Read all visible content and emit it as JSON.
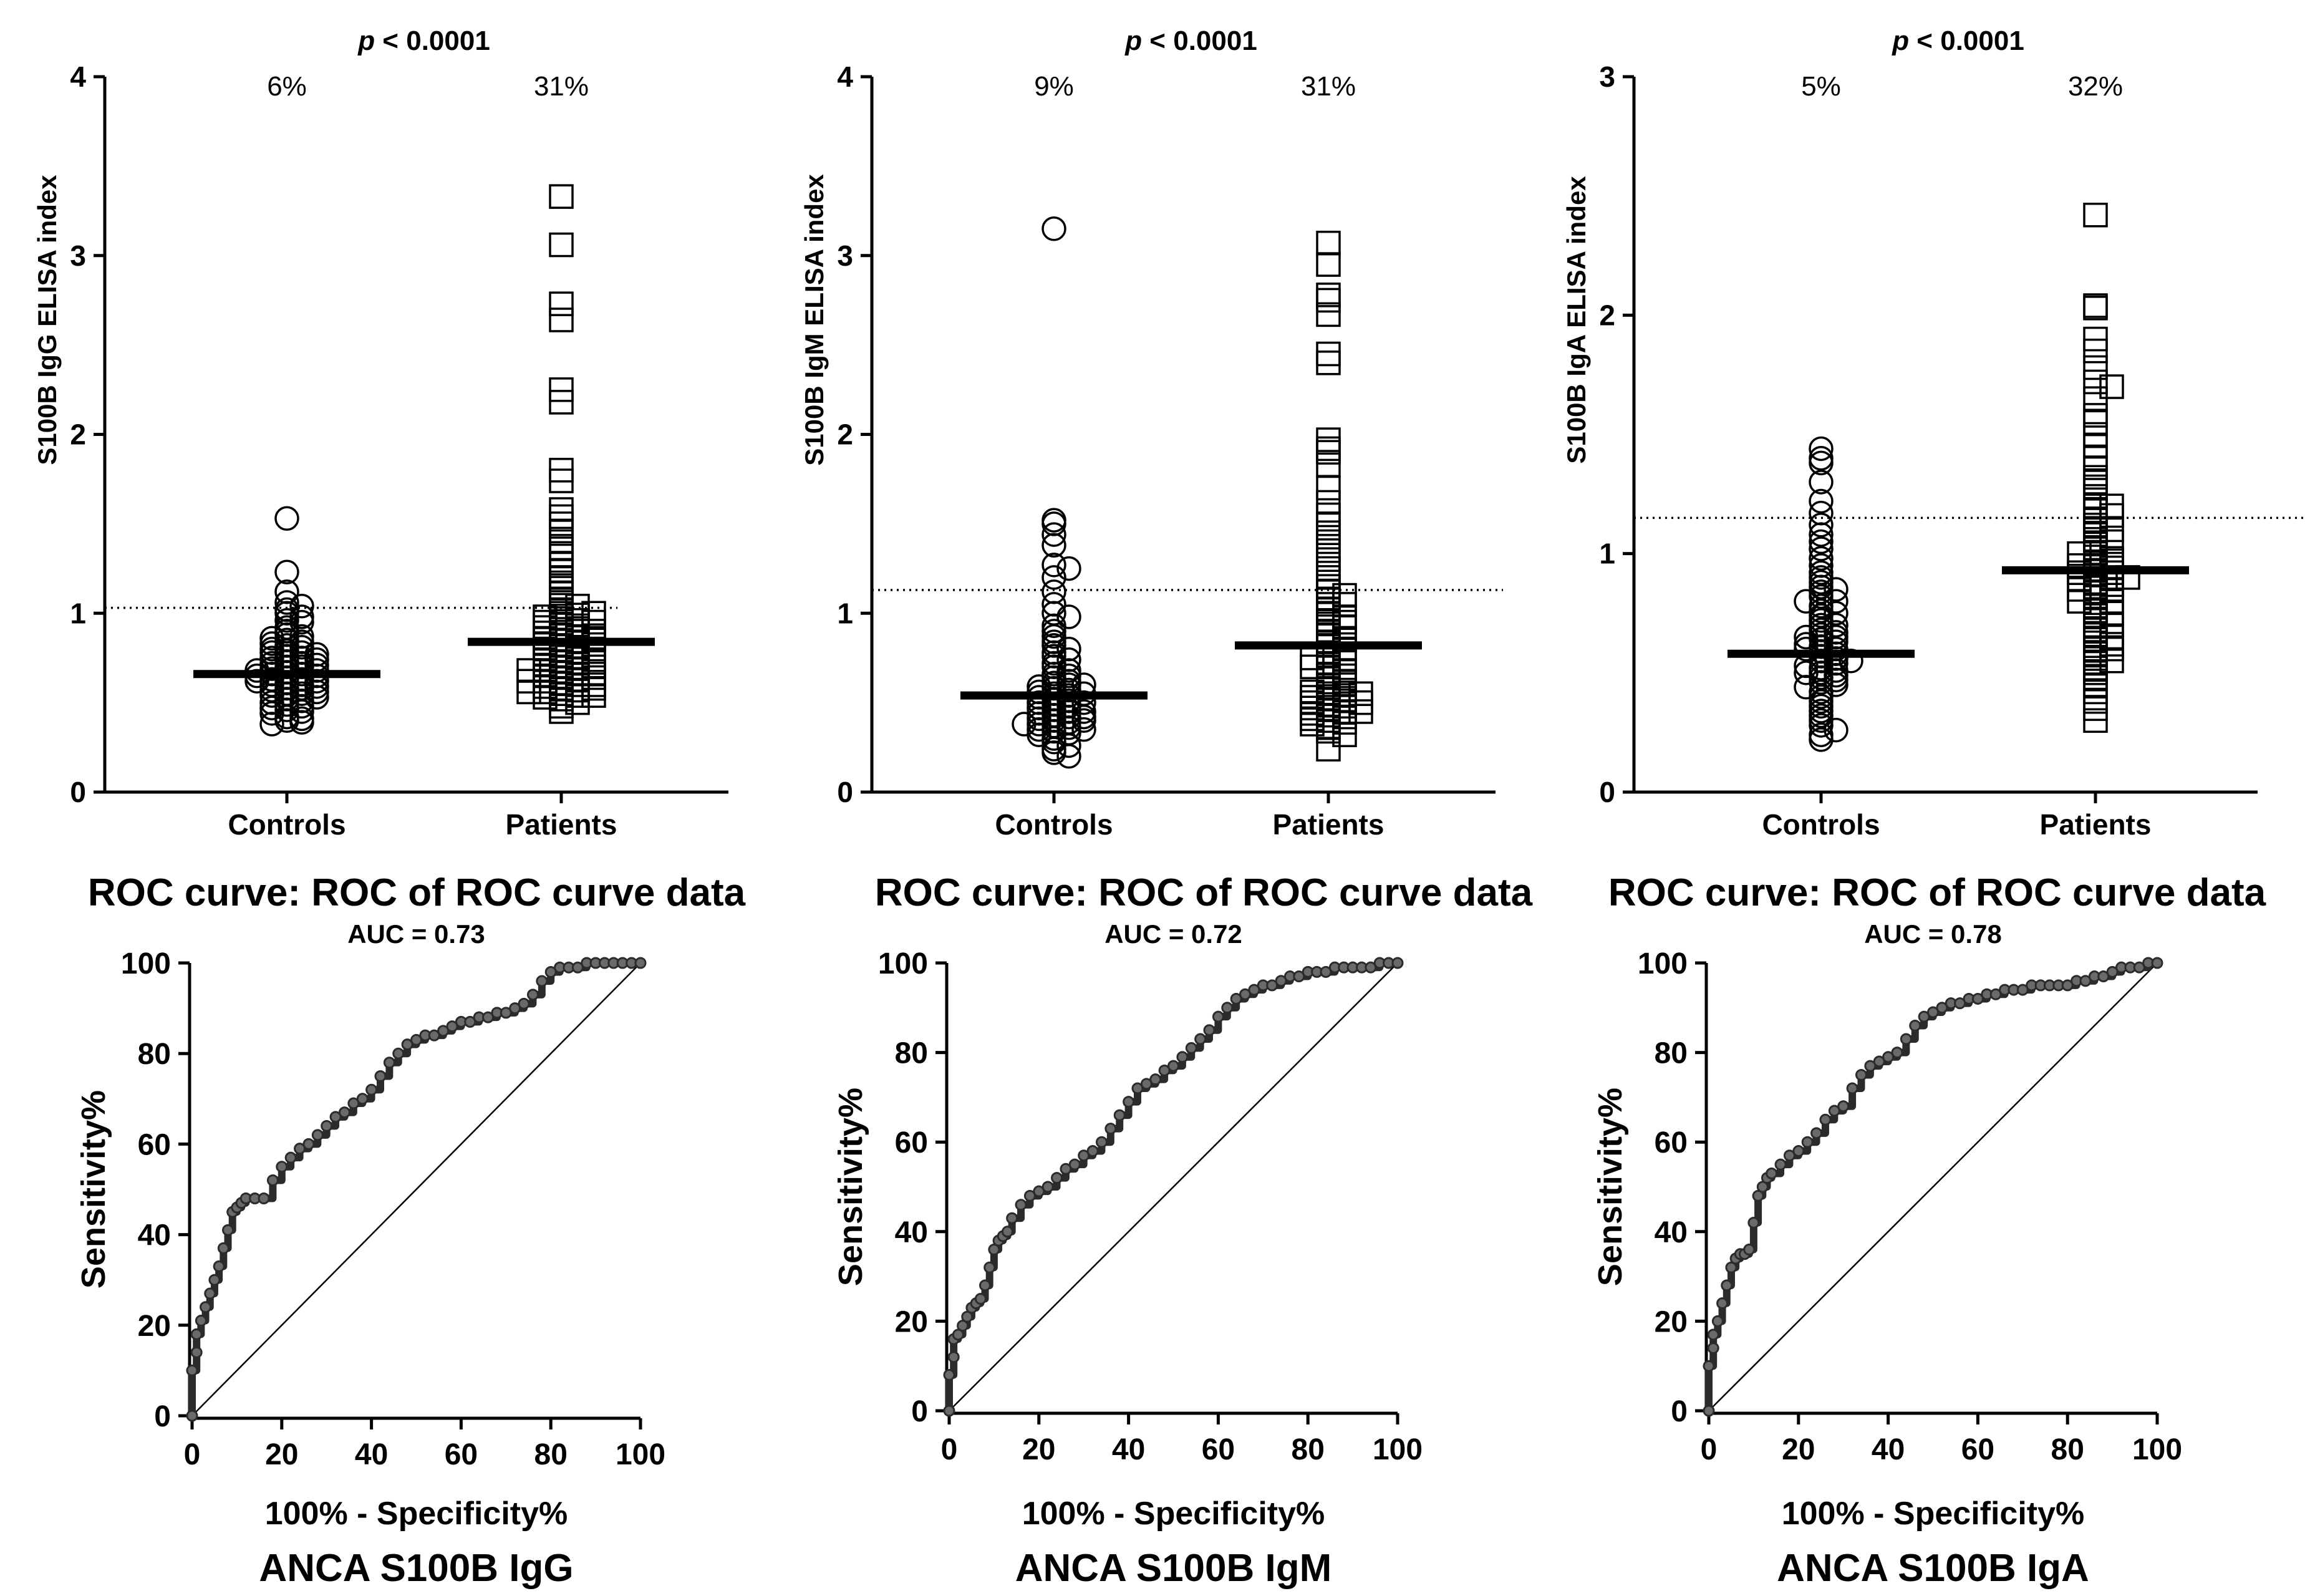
{
  "chart_data": [
    {
      "type": "scatter",
      "kind": "dot-plot",
      "ylabel": "S100B IgG ELISA index",
      "ylim": [
        0,
        4
      ],
      "yticks": [
        "0",
        "1",
        "2",
        "3",
        "4"
      ],
      "categories": [
        "Controls",
        "Patients"
      ],
      "percentages": [
        "6%",
        "31%"
      ],
      "p_value": {
        "italic": "p",
        "rest": " < 0.0001"
      },
      "cutoff": 1.03,
      "medians": [
        0.66,
        0.84
      ],
      "controls": [
        1.53,
        1.23,
        1.12,
        1.06,
        1.04,
        1.02,
        1.0,
        0.98,
        0.96,
        0.95,
        0.92,
        0.9,
        0.88,
        0.87,
        0.86,
        0.85,
        0.84,
        0.83,
        0.82,
        0.81,
        0.8,
        0.79,
        0.78,
        0.78,
        0.77,
        0.76,
        0.75,
        0.75,
        0.74,
        0.73,
        0.72,
        0.72,
        0.71,
        0.7,
        0.7,
        0.69,
        0.68,
        0.68,
        0.67,
        0.66,
        0.66,
        0.65,
        0.65,
        0.64,
        0.63,
        0.63,
        0.62,
        0.62,
        0.61,
        0.6,
        0.6,
        0.59,
        0.58,
        0.58,
        0.57,
        0.56,
        0.55,
        0.55,
        0.54,
        0.53,
        0.52,
        0.51,
        0.5,
        0.49,
        0.48,
        0.47,
        0.46,
        0.45,
        0.44,
        0.42,
        0.41,
        0.4,
        0.39,
        0.38
      ],
      "patients": [
        3.33,
        3.06,
        2.73,
        2.64,
        2.25,
        2.18,
        1.8,
        1.74,
        1.58,
        1.54,
        1.5,
        1.46,
        1.4,
        1.36,
        1.32,
        1.28,
        1.24,
        1.2,
        1.17,
        1.14,
        1.11,
        1.08,
        1.06,
        1.04,
        1.02,
        1.0,
        0.99,
        0.98,
        0.97,
        0.96,
        0.95,
        0.94,
        0.93,
        0.92,
        0.91,
        0.9,
        0.89,
        0.88,
        0.87,
        0.86,
        0.86,
        0.85,
        0.84,
        0.83,
        0.82,
        0.81,
        0.8,
        0.79,
        0.78,
        0.77,
        0.76,
        0.75,
        0.74,
        0.73,
        0.72,
        0.71,
        0.7,
        0.69,
        0.68,
        0.67,
        0.66,
        0.65,
        0.64,
        0.63,
        0.62,
        0.61,
        0.6,
        0.59,
        0.58,
        0.57,
        0.56,
        0.55,
        0.54,
        0.53,
        0.52,
        0.5,
        0.48,
        0.45,
        0.7,
        0.68,
        0.66,
        0.64,
        0.62,
        0.6,
        0.58,
        0.56,
        0.54,
        0.74,
        0.8,
        0.85,
        0.9,
        0.95,
        1.0
      ]
    },
    {
      "type": "scatter",
      "kind": "dot-plot",
      "ylabel": "S100B IgM ELISA index",
      "ylim": [
        0,
        4
      ],
      "yticks": [
        "0",
        "1",
        "2",
        "3",
        "4"
      ],
      "categories": [
        "Controls",
        "Patients"
      ],
      "percentages": [
        "9%",
        "31%"
      ],
      "p_value": {
        "italic": "p",
        "rest": " < 0.0001"
      },
      "cutoff": 1.13,
      "medians": [
        0.54,
        0.82
      ],
      "controls": [
        3.15,
        1.52,
        1.5,
        1.44,
        1.38,
        1.27,
        1.25,
        1.2,
        1.12,
        1.05,
        1.0,
        0.98,
        0.93,
        0.9,
        0.87,
        0.84,
        0.82,
        0.8,
        0.78,
        0.76,
        0.74,
        0.72,
        0.7,
        0.68,
        0.66,
        0.65,
        0.64,
        0.62,
        0.61,
        0.6,
        0.59,
        0.58,
        0.57,
        0.56,
        0.55,
        0.54,
        0.53,
        0.52,
        0.51,
        0.5,
        0.49,
        0.48,
        0.47,
        0.46,
        0.45,
        0.44,
        0.43,
        0.42,
        0.41,
        0.4,
        0.39,
        0.38,
        0.37,
        0.36,
        0.35,
        0.34,
        0.33,
        0.32,
        0.3,
        0.28,
        0.26,
        0.24,
        0.22,
        0.2,
        0.45,
        0.4,
        0.35,
        0.38,
        0.42,
        0.5,
        0.55,
        0.6
      ],
      "patients": [
        3.07,
        2.95,
        2.78,
        2.75,
        2.67,
        2.45,
        2.4,
        1.97,
        1.92,
        1.9,
        1.83,
        1.7,
        1.62,
        1.55,
        1.5,
        1.45,
        1.4,
        1.35,
        1.3,
        1.25,
        1.2,
        1.15,
        1.12,
        1.1,
        1.08,
        1.05,
        1.02,
        1.0,
        0.98,
        0.96,
        0.94,
        0.92,
        0.9,
        0.88,
        0.86,
        0.84,
        0.82,
        0.8,
        0.78,
        0.76,
        0.74,
        0.72,
        0.7,
        0.68,
        0.66,
        0.64,
        0.62,
        0.6,
        0.58,
        0.57,
        0.56,
        0.55,
        0.54,
        0.53,
        0.52,
        0.51,
        0.5,
        0.49,
        0.48,
        0.47,
        0.46,
        0.45,
        0.44,
        0.43,
        0.42,
        0.41,
        0.4,
        0.39,
        0.38,
        0.36,
        0.34,
        0.32,
        0.24,
        0.6,
        0.55,
        0.5,
        0.45,
        0.65,
        0.7,
        0.75,
        0.85,
        0.95,
        1.05
      ]
    },
    {
      "type": "scatter",
      "kind": "dot-plot",
      "ylabel": "S100B IgA ELISA index",
      "ylim": [
        0,
        3
      ],
      "yticks": [
        "0",
        "1",
        "2",
        "3"
      ],
      "categories": [
        "Controls",
        "Patients"
      ],
      "percentages": [
        "5%",
        "32%"
      ],
      "p_value": {
        "italic": "p",
        "rest": " < 0.0001"
      },
      "cutoff": 1.15,
      "medians": [
        0.58,
        0.93
      ],
      "controls": [
        1.44,
        1.4,
        1.38,
        1.3,
        1.22,
        1.17,
        1.12,
        1.08,
        1.05,
        1.02,
        0.98,
        0.95,
        0.92,
        0.9,
        0.88,
        0.86,
        0.84,
        0.82,
        0.8,
        0.78,
        0.76,
        0.74,
        0.72,
        0.7,
        0.68,
        0.67,
        0.66,
        0.65,
        0.64,
        0.63,
        0.62,
        0.61,
        0.6,
        0.59,
        0.58,
        0.57,
        0.56,
        0.55,
        0.54,
        0.53,
        0.52,
        0.51,
        0.5,
        0.49,
        0.48,
        0.47,
        0.46,
        0.45,
        0.44,
        0.42,
        0.4,
        0.38,
        0.36,
        0.34,
        0.32,
        0.3,
        0.28,
        0.26,
        0.24,
        0.22,
        0.5,
        0.55,
        0.6,
        0.65,
        0.7,
        0.75,
        0.8,
        0.85
      ],
      "patients": [
        2.42,
        2.04,
        2.03,
        1.9,
        1.85,
        1.78,
        1.72,
        1.7,
        1.65,
        1.58,
        1.55,
        1.5,
        1.45,
        1.4,
        1.36,
        1.32,
        1.28,
        1.24,
        1.2,
        1.18,
        1.16,
        1.14,
        1.12,
        1.1,
        1.08,
        1.06,
        1.04,
        1.02,
        1.0,
        0.98,
        0.96,
        0.95,
        0.94,
        0.93,
        0.92,
        0.91,
        0.9,
        0.89,
        0.88,
        0.87,
        0.86,
        0.85,
        0.84,
        0.82,
        0.8,
        0.78,
        0.76,
        0.74,
        0.72,
        0.7,
        0.68,
        0.66,
        0.64,
        0.62,
        0.6,
        0.58,
        0.56,
        0.54,
        0.52,
        0.5,
        0.48,
        0.45,
        0.42,
        0.38,
        0.35,
        0.3,
        0.9,
        0.95,
        1.0,
        1.05,
        0.85,
        0.8,
        0.75,
        0.7,
        0.65,
        0.6,
        0.55,
        1.1,
        1.2,
        1.3,
        0.92,
        0.97
      ]
    },
    {
      "type": "line",
      "kind": "roc",
      "title": "ROC curve: ROC of ROC curve data",
      "subtitle": "AUC = 0.73",
      "xlabel": "100% - Specificity%",
      "ylabel": "Sensitivity%",
      "caption": "ANCA S100B IgG",
      "xlim": [
        0,
        100
      ],
      "ylim": [
        0,
        100
      ],
      "xticks": [
        "0",
        "20",
        "40",
        "60",
        "80",
        "100"
      ],
      "yticks": [
        "0",
        "20",
        "40",
        "60",
        "80",
        "100"
      ],
      "x": [
        0,
        0,
        1,
        1,
        2,
        3,
        4,
        5,
        6,
        7,
        8,
        9,
        10,
        11,
        12,
        14,
        16,
        18,
        20,
        22,
        24,
        26,
        28,
        30,
        32,
        34,
        36,
        38,
        40,
        42,
        44,
        46,
        48,
        50,
        52,
        54,
        56,
        58,
        60,
        62,
        64,
        66,
        68,
        70,
        72,
        74,
        76,
        78,
        80,
        82,
        84,
        86,
        88,
        90,
        92,
        94,
        96,
        98,
        100
      ],
      "y": [
        0,
        10,
        14,
        18,
        21,
        24,
        27,
        30,
        33,
        37,
        41,
        45,
        46,
        47,
        48,
        48,
        48,
        52,
        55,
        57,
        59,
        60,
        62,
        64,
        66,
        67,
        69,
        70,
        72,
        75,
        78,
        80,
        82,
        83,
        84,
        84,
        85,
        86,
        87,
        87,
        88,
        88,
        89,
        89,
        90,
        91,
        93,
        96,
        98,
        99,
        99,
        99,
        100,
        100,
        100,
        100,
        100,
        100,
        100
      ]
    },
    {
      "type": "line",
      "kind": "roc",
      "title": "ROC curve: ROC of ROC curve data",
      "subtitle": "AUC = 0.72",
      "xlabel": "100% - Specificity%",
      "ylabel": "Sensitivity%",
      "caption": "ANCA S100B IgM",
      "xlim": [
        0,
        100
      ],
      "ylim": [
        0,
        100
      ],
      "xticks": [
        "0",
        "20",
        "40",
        "60",
        "80",
        "100"
      ],
      "yticks": [
        "0",
        "20",
        "40",
        "60",
        "80",
        "100"
      ],
      "x": [
        0,
        0,
        1,
        1,
        2,
        3,
        4,
        5,
        6,
        7,
        8,
        9,
        10,
        11,
        12,
        13,
        14,
        16,
        18,
        20,
        22,
        24,
        26,
        28,
        30,
        32,
        34,
        36,
        38,
        40,
        42,
        44,
        46,
        48,
        50,
        52,
        54,
        56,
        58,
        60,
        62,
        64,
        66,
        68,
        70,
        72,
        74,
        76,
        78,
        80,
        82,
        84,
        86,
        88,
        90,
        92,
        94,
        96,
        98,
        100
      ],
      "y": [
        0,
        8,
        12,
        16,
        17,
        19,
        21,
        23,
        24,
        25,
        28,
        32,
        36,
        38,
        39,
        40,
        43,
        46,
        48,
        49,
        50,
        52,
        54,
        55,
        57,
        58,
        60,
        63,
        66,
        69,
        72,
        73,
        74,
        76,
        77,
        79,
        81,
        83,
        85,
        88,
        90,
        92,
        93,
        94,
        95,
        95,
        96,
        97,
        97,
        98,
        98,
        98,
        99,
        99,
        99,
        99,
        99,
        100,
        100,
        100
      ]
    },
    {
      "type": "line",
      "kind": "roc",
      "title": "ROC curve: ROC of ROC curve data",
      "subtitle": "AUC = 0.78",
      "xlabel": "100% - Specificity%",
      "ylabel": "Sensitivity%",
      "caption": "ANCA S100B IgA",
      "xlim": [
        0,
        100
      ],
      "ylim": [
        0,
        100
      ],
      "xticks": [
        "0",
        "20",
        "40",
        "60",
        "80",
        "100"
      ],
      "yticks": [
        "0",
        "20",
        "40",
        "60",
        "80",
        "100"
      ],
      "x": [
        0,
        0,
        1,
        1,
        2,
        3,
        4,
        5,
        6,
        7,
        8,
        9,
        10,
        11,
        12,
        13,
        14,
        16,
        18,
        20,
        22,
        24,
        26,
        28,
        30,
        32,
        34,
        36,
        38,
        40,
        42,
        44,
        46,
        48,
        50,
        52,
        54,
        56,
        58,
        60,
        62,
        64,
        66,
        68,
        70,
        72,
        74,
        76,
        78,
        80,
        82,
        84,
        86,
        88,
        90,
        92,
        94,
        96,
        98,
        100
      ],
      "y": [
        0,
        10,
        14,
        17,
        20,
        24,
        28,
        32,
        34,
        35,
        35,
        36,
        42,
        48,
        50,
        52,
        53,
        55,
        57,
        58,
        60,
        62,
        65,
        67,
        68,
        72,
        75,
        77,
        78,
        79,
        80,
        83,
        86,
        88,
        89,
        90,
        91,
        91,
        92,
        92,
        93,
        93,
        94,
        94,
        94,
        95,
        95,
        95,
        95,
        95,
        96,
        96,
        97,
        97,
        98,
        99,
        99,
        99,
        100,
        100
      ]
    }
  ]
}
